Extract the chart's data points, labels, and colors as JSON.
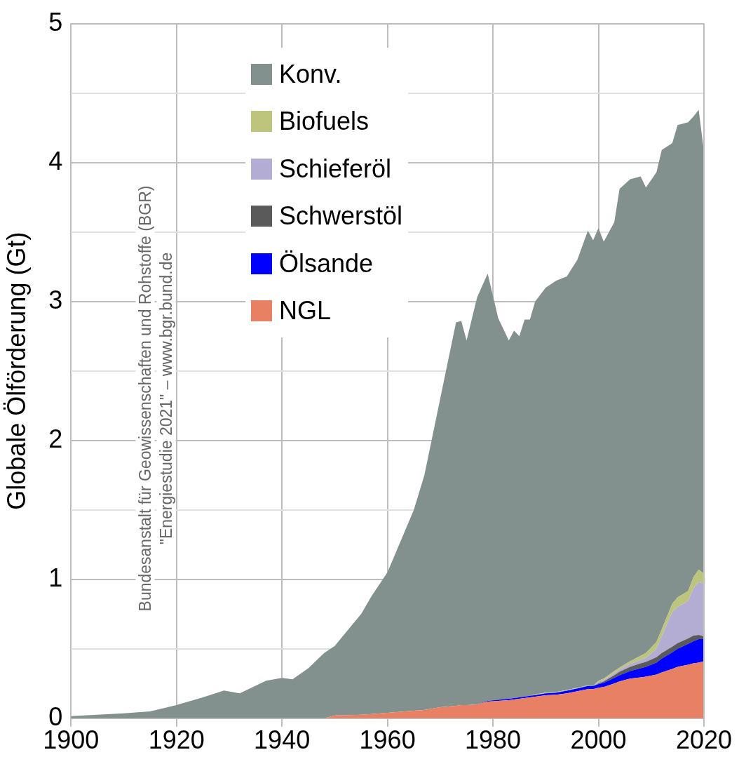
{
  "chart_data": {
    "type": "area",
    "stacked": true,
    "ylabel": "Globale Ölförderung (Gt)",
    "x": [
      1900,
      1905,
      1910,
      1915,
      1920,
      1925,
      1929,
      1932,
      1937,
      1940,
      1942,
      1945,
      1948,
      1950,
      1955,
      1957,
      1960,
      1965,
      1967,
      1970,
      1973,
      1974,
      1975,
      1977,
      1979,
      1981,
      1983,
      1984,
      1985,
      1986,
      1987,
      1988,
      1990,
      1992,
      1994,
      1996,
      1998,
      1999,
      2000,
      2001,
      2003,
      2004,
      2006,
      2008,
      2009,
      2011,
      2012,
      2014,
      2015,
      2017,
      2018,
      2019,
      2020
    ],
    "series": [
      {
        "name": "NGL",
        "color": "#e88063",
        "values": [
          0,
          0,
          0,
          0,
          0,
          0,
          0,
          0,
          0,
          0,
          0,
          0,
          0,
          0.02,
          0.025,
          0.03,
          0.04,
          0.055,
          0.06,
          0.08,
          0.09,
          0.095,
          0.095,
          0.1,
          0.12,
          0.125,
          0.13,
          0.135,
          0.14,
          0.145,
          0.15,
          0.155,
          0.165,
          0.17,
          0.18,
          0.195,
          0.21,
          0.21,
          0.22,
          0.225,
          0.25,
          0.265,
          0.285,
          0.295,
          0.3,
          0.315,
          0.33,
          0.355,
          0.37,
          0.385,
          0.395,
          0.4,
          0.41
        ]
      },
      {
        "name": "Ölsande",
        "color": "#0000ff",
        "values": [
          0,
          0,
          0,
          0,
          0,
          0,
          0,
          0,
          0,
          0,
          0,
          0,
          0,
          0,
          0,
          0,
          0,
          0,
          0,
          0,
          0,
          0,
          0,
          0,
          0.005,
          0.008,
          0.01,
          0.01,
          0.01,
          0.01,
          0.012,
          0.012,
          0.015,
          0.015,
          0.018,
          0.02,
          0.022,
          0.022,
          0.025,
          0.03,
          0.04,
          0.045,
          0.055,
          0.065,
          0.07,
          0.085,
          0.1,
          0.12,
          0.13,
          0.15,
          0.16,
          0.17,
          0.16
        ]
      },
      {
        "name": "Schwerstöl",
        "color": "#5a5a5a",
        "values": [
          0,
          0,
          0,
          0,
          0,
          0,
          0,
          0,
          0,
          0,
          0,
          0,
          0,
          0,
          0,
          0,
          0,
          0,
          0,
          0,
          0,
          0,
          0,
          0,
          0,
          0,
          0,
          0,
          0,
          0,
          0,
          0,
          0,
          0,
          0,
          0,
          0,
          0,
          0.005,
          0.01,
          0.02,
          0.025,
          0.03,
          0.035,
          0.035,
          0.04,
          0.04,
          0.04,
          0.04,
          0.04,
          0.04,
          0.03,
          0.02
        ]
      },
      {
        "name": "Schieferöl",
        "color": "#b3acd3",
        "values": [
          0,
          0,
          0,
          0,
          0,
          0,
          0,
          0,
          0,
          0,
          0,
          0,
          0,
          0,
          0,
          0,
          0,
          0,
          0,
          0,
          0,
          0,
          0,
          0,
          0,
          0,
          0,
          0,
          0,
          0,
          0,
          0,
          0,
          0,
          0,
          0,
          0,
          0,
          0.01,
          0.01,
          0.015,
          0.015,
          0.02,
          0.025,
          0.03,
          0.06,
          0.12,
          0.25,
          0.26,
          0.27,
          0.34,
          0.38,
          0.38
        ]
      },
      {
        "name": "Biofuels",
        "color": "#bdc47c",
        "values": [
          0,
          0,
          0,
          0,
          0,
          0,
          0,
          0,
          0,
          0,
          0,
          0,
          0,
          0,
          0,
          0,
          0,
          0,
          0,
          0,
          0,
          0,
          0,
          0,
          0,
          0,
          0,
          0,
          0,
          0,
          0,
          0.005,
          0.005,
          0.005,
          0.005,
          0.005,
          0.005,
          0,
          0.01,
          0.01,
          0.015,
          0.015,
          0.02,
          0.03,
          0.035,
          0.05,
          0.05,
          0.06,
          0.07,
          0.07,
          0.08,
          0.09,
          0.07
        ]
      },
      {
        "name": "Konv.",
        "color": "#83918e",
        "values": [
          0.015,
          0.025,
          0.035,
          0.05,
          0.095,
          0.15,
          0.2,
          0.18,
          0.27,
          0.29,
          0.28,
          0.36,
          0.47,
          0.5,
          0.725,
          0.85,
          1.01,
          1.445,
          1.69,
          2.22,
          2.76,
          2.765,
          2.625,
          2.93,
          3.075,
          2.747,
          2.58,
          2.645,
          2.6,
          2.715,
          2.708,
          2.828,
          2.915,
          2.96,
          2.977,
          3.08,
          3.273,
          3.208,
          3.26,
          3.145,
          3.23,
          3.445,
          3.47,
          3.45,
          3.35,
          3.38,
          3.45,
          3.315,
          3.4,
          3.375,
          3.315,
          3.31,
          3.04
        ]
      }
    ],
    "xlim": [
      1900,
      2020
    ],
    "xticks": [
      1900,
      1920,
      1940,
      1960,
      1980,
      2000,
      2020
    ],
    "ylim": [
      0,
      5
    ],
    "yticks": [
      0,
      {
        "value": 0.5,
        "label": null
      },
      1,
      {
        "value": 1.5,
        "label": null
      },
      2,
      {
        "value": 2.5,
        "label": null
      },
      3,
      {
        "value": 3.5,
        "label": null
      },
      4,
      {
        "value": 4.5,
        "label": null
      },
      5
    ],
    "grid": true,
    "legend": "top left",
    "annotations": [
      "Bundesanstalt für Geowissenschaften und Rohstoffe (BGR)",
      "\"Energiestudie 2021\" – www.bgr.bund.de"
    ]
  }
}
